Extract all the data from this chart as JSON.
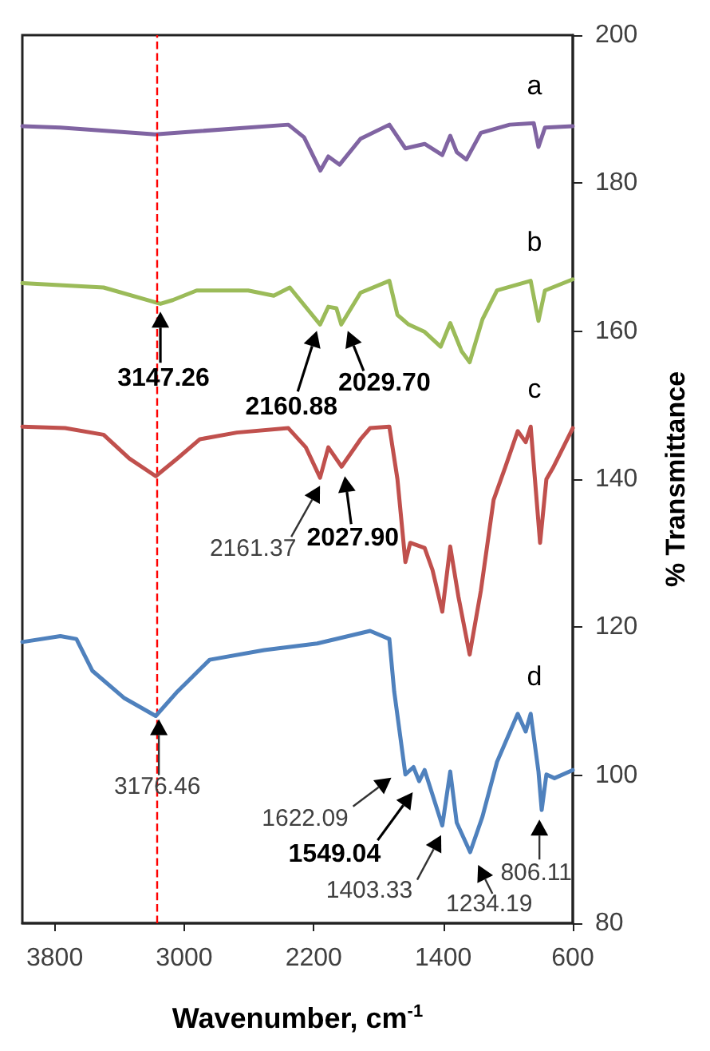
{
  "chart_data": {
    "type": "line",
    "xlabel": "Wavenumber, cm$^{-1}$",
    "ylabel": "% Transmittance",
    "xlim": [
      4000,
      600
    ],
    "xticks": [
      3800,
      3000,
      2200,
      1400,
      600
    ],
    "ylim": [
      80,
      200
    ],
    "yticks": [
      80,
      100,
      120,
      140,
      160,
      180,
      200
    ],
    "grid": false,
    "marker": "none",
    "line_style": "solid",
    "series": [
      {
        "name": "a",
        "color": "#8064a2",
        "x": [
          4000,
          3765,
          3180,
          2357,
          2260,
          2159,
          2110,
          2040,
          1911,
          1733,
          1634,
          1515,
          1406,
          1357,
          1317,
          1257,
          1168,
          990,
          841,
          812,
          772,
          600
        ],
        "values": [
          187.7,
          187.5,
          186.6,
          187.9,
          186.2,
          181.7,
          183.6,
          182.5,
          186.0,
          187.9,
          184.7,
          185.3,
          183.8,
          186.4,
          184.2,
          183.2,
          186.8,
          187.9,
          188.1,
          184.9,
          187.5,
          187.7
        ]
      },
      {
        "name": "b",
        "color": "#9bbb59",
        "x": [
          4000,
          3498,
          3147,
          3071,
          2923,
          2605,
          2447,
          2348,
          2161,
          2110,
          2060,
          2030,
          1911,
          1733,
          1683,
          1614,
          1515,
          1416,
          1357,
          1287,
          1237,
          1158,
          1068,
          860,
          812,
          772,
          600
        ],
        "values": [
          166.5,
          165.9,
          163.7,
          164.2,
          165.5,
          165.5,
          164.8,
          165.9,
          160.9,
          163.3,
          163.1,
          160.9,
          165.2,
          166.8,
          162.2,
          160.9,
          159.9,
          157.9,
          161.1,
          157.3,
          155.8,
          161.6,
          165.5,
          166.8,
          161.4,
          165.5,
          167.0
        ]
      },
      {
        "name": "c",
        "color": "#c0504d",
        "x": [
          4000,
          3736,
          3498,
          3339,
          3176,
          3042,
          2903,
          2675,
          2357,
          2249,
          2161,
          2110,
          2028,
          1911,
          1852,
          1733,
          1683,
          1634,
          1604,
          1515,
          1466,
          1406,
          1357,
          1307,
          1237,
          1168,
          1089,
          1019,
          940,
          891,
          860,
          802,
          763,
          723,
          600
        ],
        "values": [
          147.1,
          146.9,
          146.0,
          142.8,
          140.4,
          142.8,
          145.4,
          146.3,
          146.9,
          144.3,
          140.2,
          144.3,
          141.7,
          145.4,
          146.9,
          147.1,
          140.0,
          128.8,
          131.4,
          130.7,
          127.7,
          122.1,
          130.9,
          124.2,
          116.3,
          124.9,
          137.2,
          141.5,
          146.5,
          145.0,
          147.1,
          131.4,
          140.0,
          141.5,
          146.9
        ]
      },
      {
        "name": "d",
        "color": "#4f81bd",
        "x": [
          4000,
          3765,
          3666,
          3567,
          3369,
          3176,
          3042,
          2843,
          2506,
          2179,
          1852,
          1733,
          1703,
          1634,
          1584,
          1549,
          1515,
          1406,
          1357,
          1317,
          1234,
          1158,
          1068,
          940,
          891,
          860,
          812,
          792,
          763,
          713,
          600
        ],
        "values": [
          118.0,
          118.8,
          118.4,
          114.1,
          110.4,
          108.0,
          111.3,
          115.6,
          116.9,
          117.8,
          119.5,
          118.4,
          111.3,
          100.1,
          101.1,
          99.2,
          100.7,
          93.2,
          100.5,
          93.6,
          89.6,
          94.4,
          101.8,
          108.3,
          105.9,
          108.3,
          100.5,
          95.3,
          100.1,
          99.6,
          100.7
        ]
      }
    ],
    "ref_lines": [
      {
        "axis": "x",
        "value": 3170,
        "color": "#ff0000",
        "line_style": "dashed"
      }
    ],
    "annotations": [
      {
        "text": "3147.26",
        "x": 3147.26,
        "y": 163.5
      },
      {
        "text": "2160.88",
        "x": 2160.88,
        "y": 160.9
      },
      {
        "text": "2029.70",
        "x": 2029.7,
        "y": 160.9
      },
      {
        "text": "2161.37",
        "x": 2161.37,
        "y": 140.2
      },
      {
        "text": "2027.90",
        "x": 2027.9,
        "y": 141.7
      },
      {
        "text": "3176.46",
        "x": 3176.46,
        "y": 108
      },
      {
        "text": "1622.09",
        "x": 1622.09,
        "y": 100.1
      },
      {
        "text": "1549.04",
        "x": 1549.04,
        "y": 99.2
      },
      {
        "text": "1403.33",
        "x": 1403.33,
        "y": 93.2
      },
      {
        "text": "1234.19",
        "x": 1234.19,
        "y": 89.6
      },
      {
        "text": "806.11",
        "x": 806.11,
        "y": 95.3
      }
    ]
  }
}
